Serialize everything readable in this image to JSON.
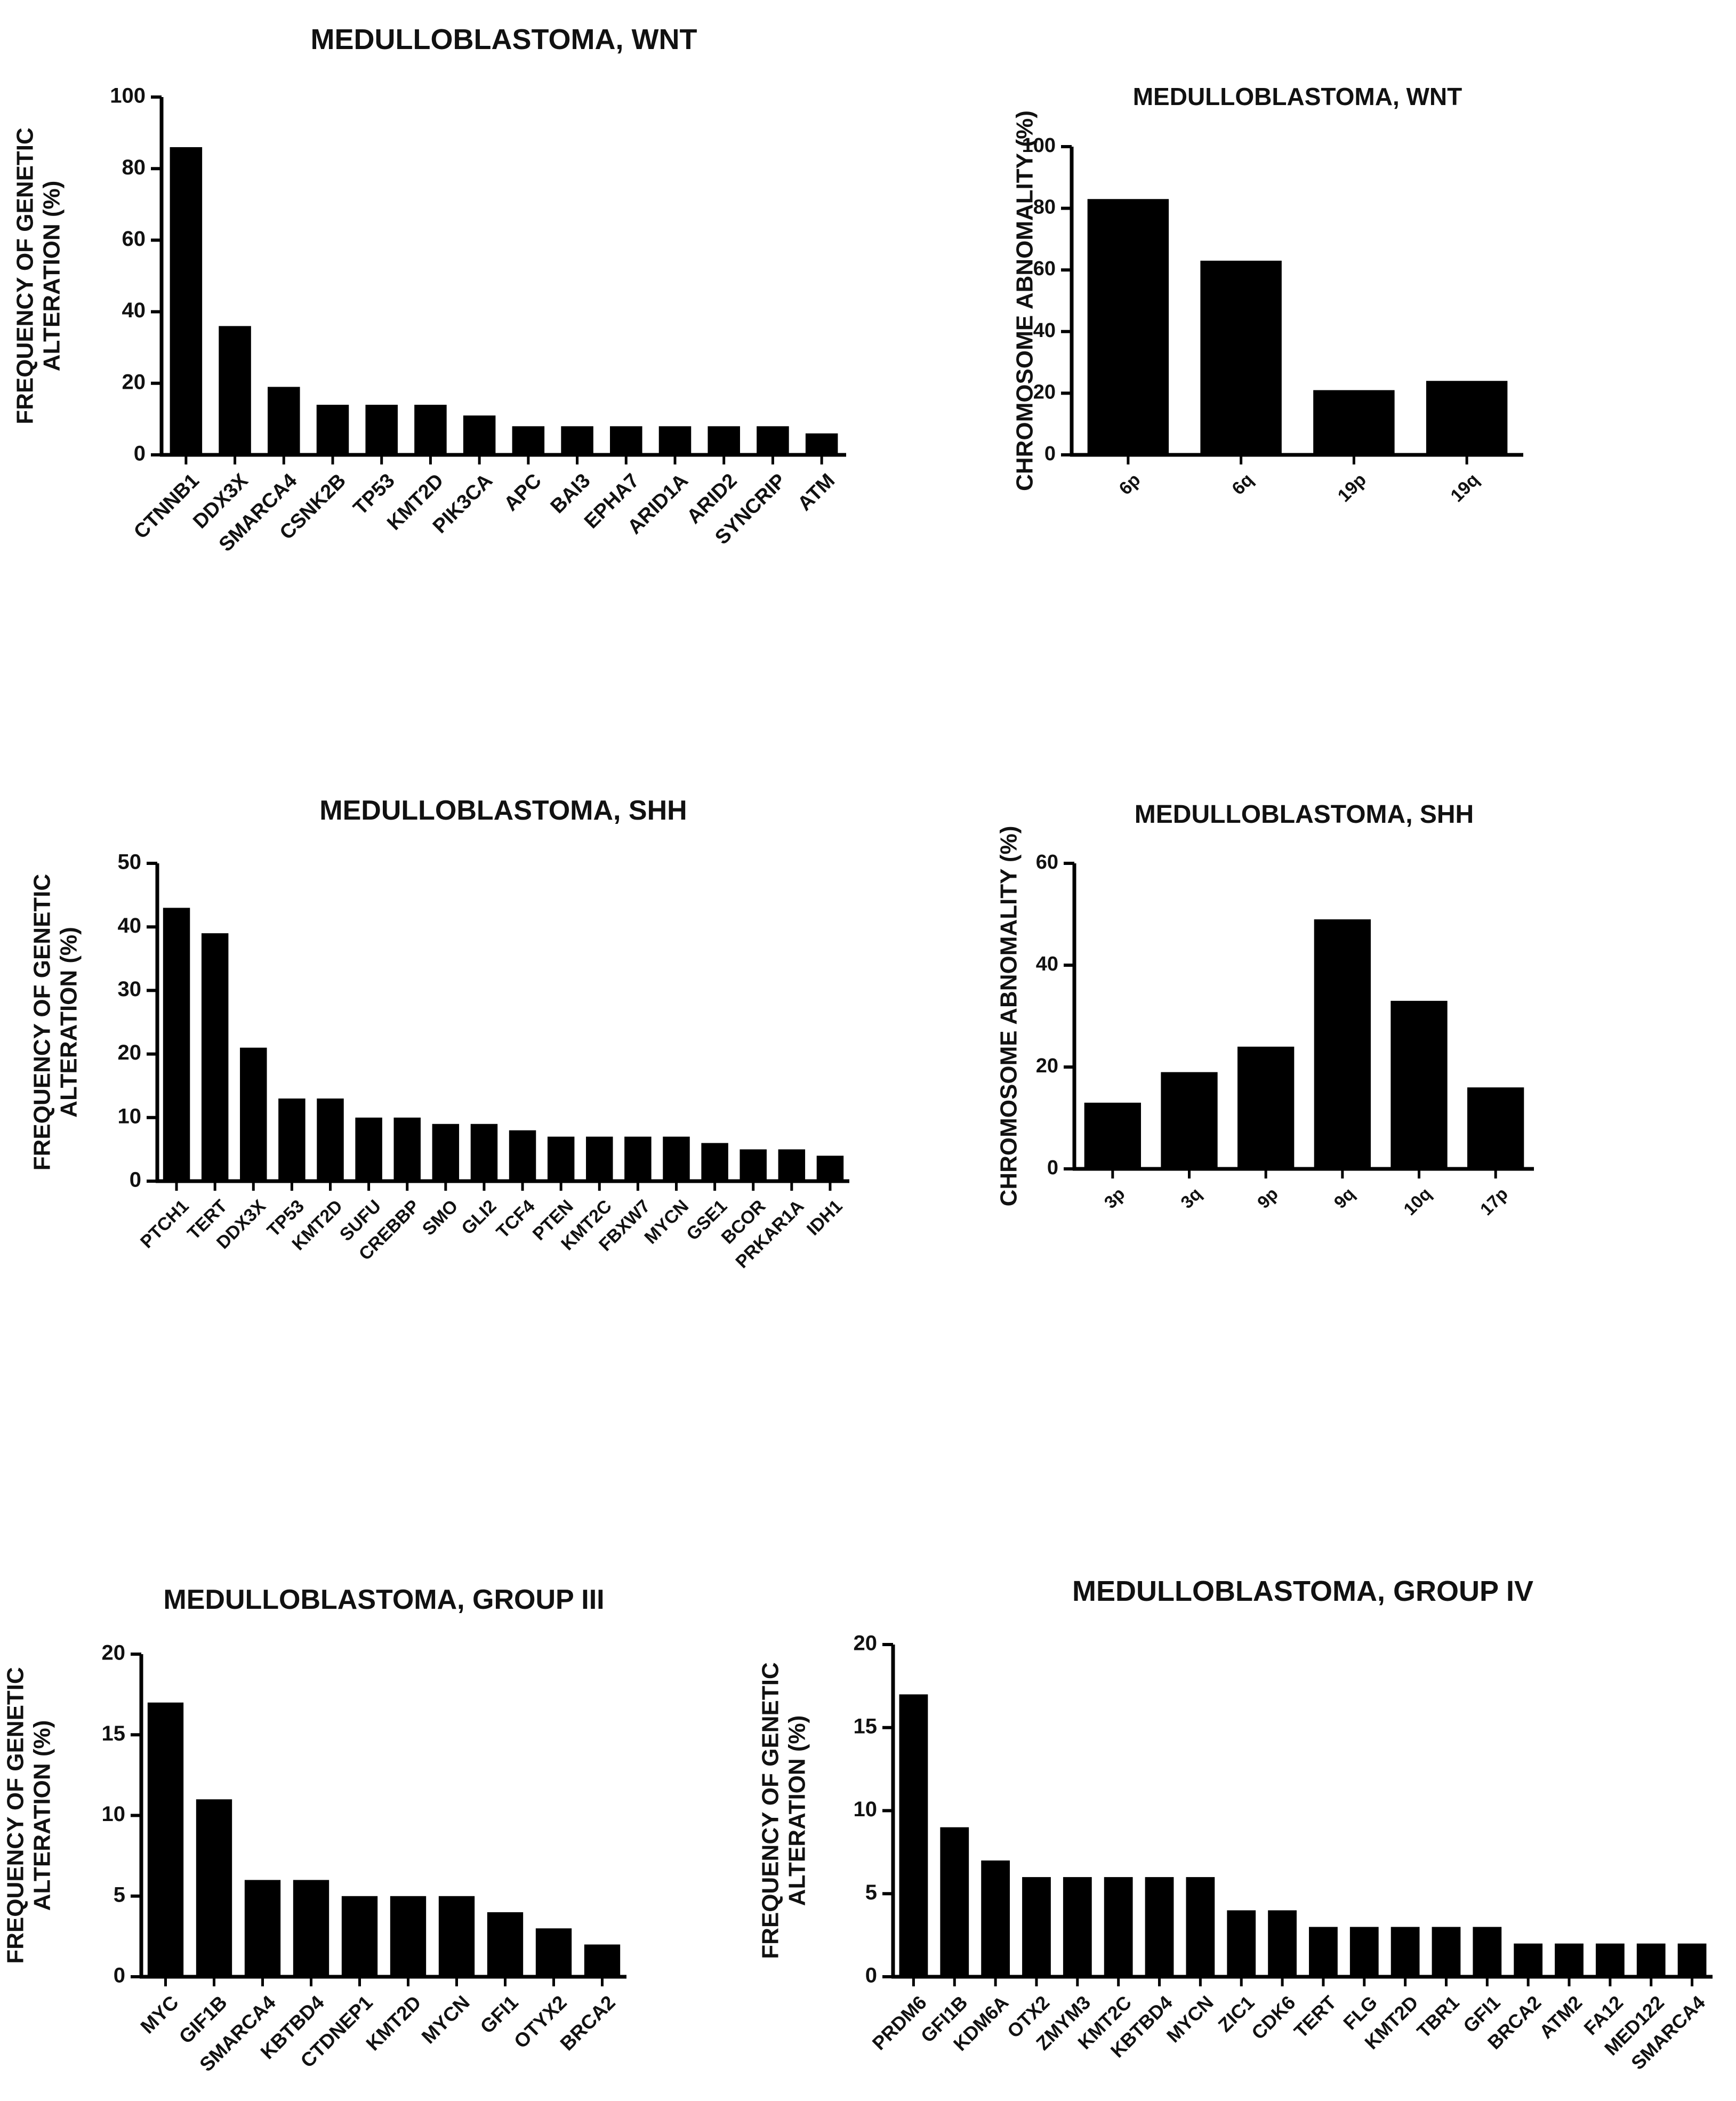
{
  "chart_data": [
    {
      "type": "bar",
      "title": "MEDULLOBLASTOMA, WNT",
      "ylabel": [
        "FREQUENCY OF GENETIC",
        "ALTERATION (%)"
      ],
      "xlabel": "",
      "ylim": [
        0,
        100
      ],
      "yticks": [
        0,
        20,
        40,
        60,
        80,
        100
      ],
      "categories": [
        "CTNNB1",
        "DDX3X",
        "SMARCA4",
        "CSNK2B",
        "TP53",
        "KMT2D",
        "PIK3CA",
        "APC",
        "BAI3",
        "EPHA7",
        "ARID1A",
        "ARID2",
        "SYNCRIP",
        "ATM"
      ],
      "values": [
        86,
        36,
        19,
        14,
        14,
        14,
        11,
        8,
        8,
        8,
        8,
        8,
        8,
        6
      ]
    },
    {
      "type": "bar",
      "title": "MEDULLOBLASTOMA, WNT",
      "ylabel": [
        "CHROMOSOME ABNOMALITY (%)"
      ],
      "xlabel": "",
      "ylim": [
        0,
        100
      ],
      "yticks": [
        0,
        20,
        40,
        60,
        80,
        100
      ],
      "categories": [
        "6p",
        "6q",
        "19p",
        "19q"
      ],
      "values": [
        83,
        63,
        21,
        24
      ]
    },
    {
      "type": "bar",
      "title": "MEDULLOBLASTOMA, SHH",
      "ylabel": [
        "FREQUENCY OF GENETIC",
        "ALTERATION (%)"
      ],
      "xlabel": "",
      "ylim": [
        0,
        50
      ],
      "yticks": [
        0,
        10,
        20,
        30,
        40,
        50
      ],
      "categories": [
        "PTCH1",
        "TERT",
        "DDX3X",
        "TP53",
        "KMT2D",
        "SUFU",
        "CREBBP",
        "SMO",
        "GLI2",
        "TCF4",
        "PTEN",
        "KMT2C",
        "FBXW7",
        "MYCN",
        "GSE1",
        "BCOR",
        "PRKAR1A",
        "IDH1"
      ],
      "values": [
        43,
        39,
        21,
        13,
        13,
        10,
        10,
        9,
        9,
        8,
        7,
        7,
        7,
        7,
        6,
        5,
        5,
        4
      ]
    },
    {
      "type": "bar",
      "title": "MEDULLOBLASTOMA, SHH",
      "ylabel": [
        "CHROMOSOME ABNOMALITY (%)"
      ],
      "xlabel": "",
      "ylim": [
        0,
        60
      ],
      "yticks": [
        0,
        20,
        40,
        60
      ],
      "categories": [
        "3p",
        "3q",
        "9p",
        "9q",
        "10q",
        "17p"
      ],
      "values": [
        13,
        19,
        24,
        49,
        33,
        16
      ]
    },
    {
      "type": "bar",
      "title": "MEDULLOBLASTOMA, GROUP III",
      "ylabel": [
        "FREQUENCY OF GENETIC",
        "ALTERATION (%)"
      ],
      "xlabel": "",
      "ylim": [
        0,
        20
      ],
      "yticks": [
        0,
        5,
        10,
        15,
        20
      ],
      "categories": [
        "MYC",
        "GIF1B",
        "SMARCA4",
        "KBTBD4",
        "CTDNEP1",
        "KMT2D",
        "MYCN",
        "GFI1",
        "OTYX2",
        "BRCA2"
      ],
      "values": [
        17,
        11,
        6,
        6,
        5,
        5,
        5,
        4,
        3,
        2
      ]
    },
    {
      "type": "bar",
      "title": "MEDULLOBLASTOMA, GROUP IV",
      "ylabel": [
        "FREQUENCY OF GENETIC",
        "ALTERATION (%)"
      ],
      "xlabel": "",
      "ylim": [
        0,
        20
      ],
      "yticks": [
        0,
        5,
        10,
        15,
        20
      ],
      "categories": [
        "PRDM6",
        "GFI1B",
        "KDM6A",
        "OTX2",
        "ZMYM3",
        "KMT2C",
        "KBTBD4",
        "MYCN",
        "ZIC1",
        "CDK6",
        "TERT",
        "FLG",
        "KMT2D",
        "TBR1",
        "GFI1",
        "BRCA2",
        "ATM2",
        "FA12",
        "MED122",
        "SMARCA4"
      ],
      "values": [
        17,
        9,
        7,
        6,
        6,
        6,
        6,
        6,
        4,
        4,
        3,
        3,
        3,
        3,
        3,
        2,
        2,
        2,
        2,
        2
      ]
    }
  ]
}
